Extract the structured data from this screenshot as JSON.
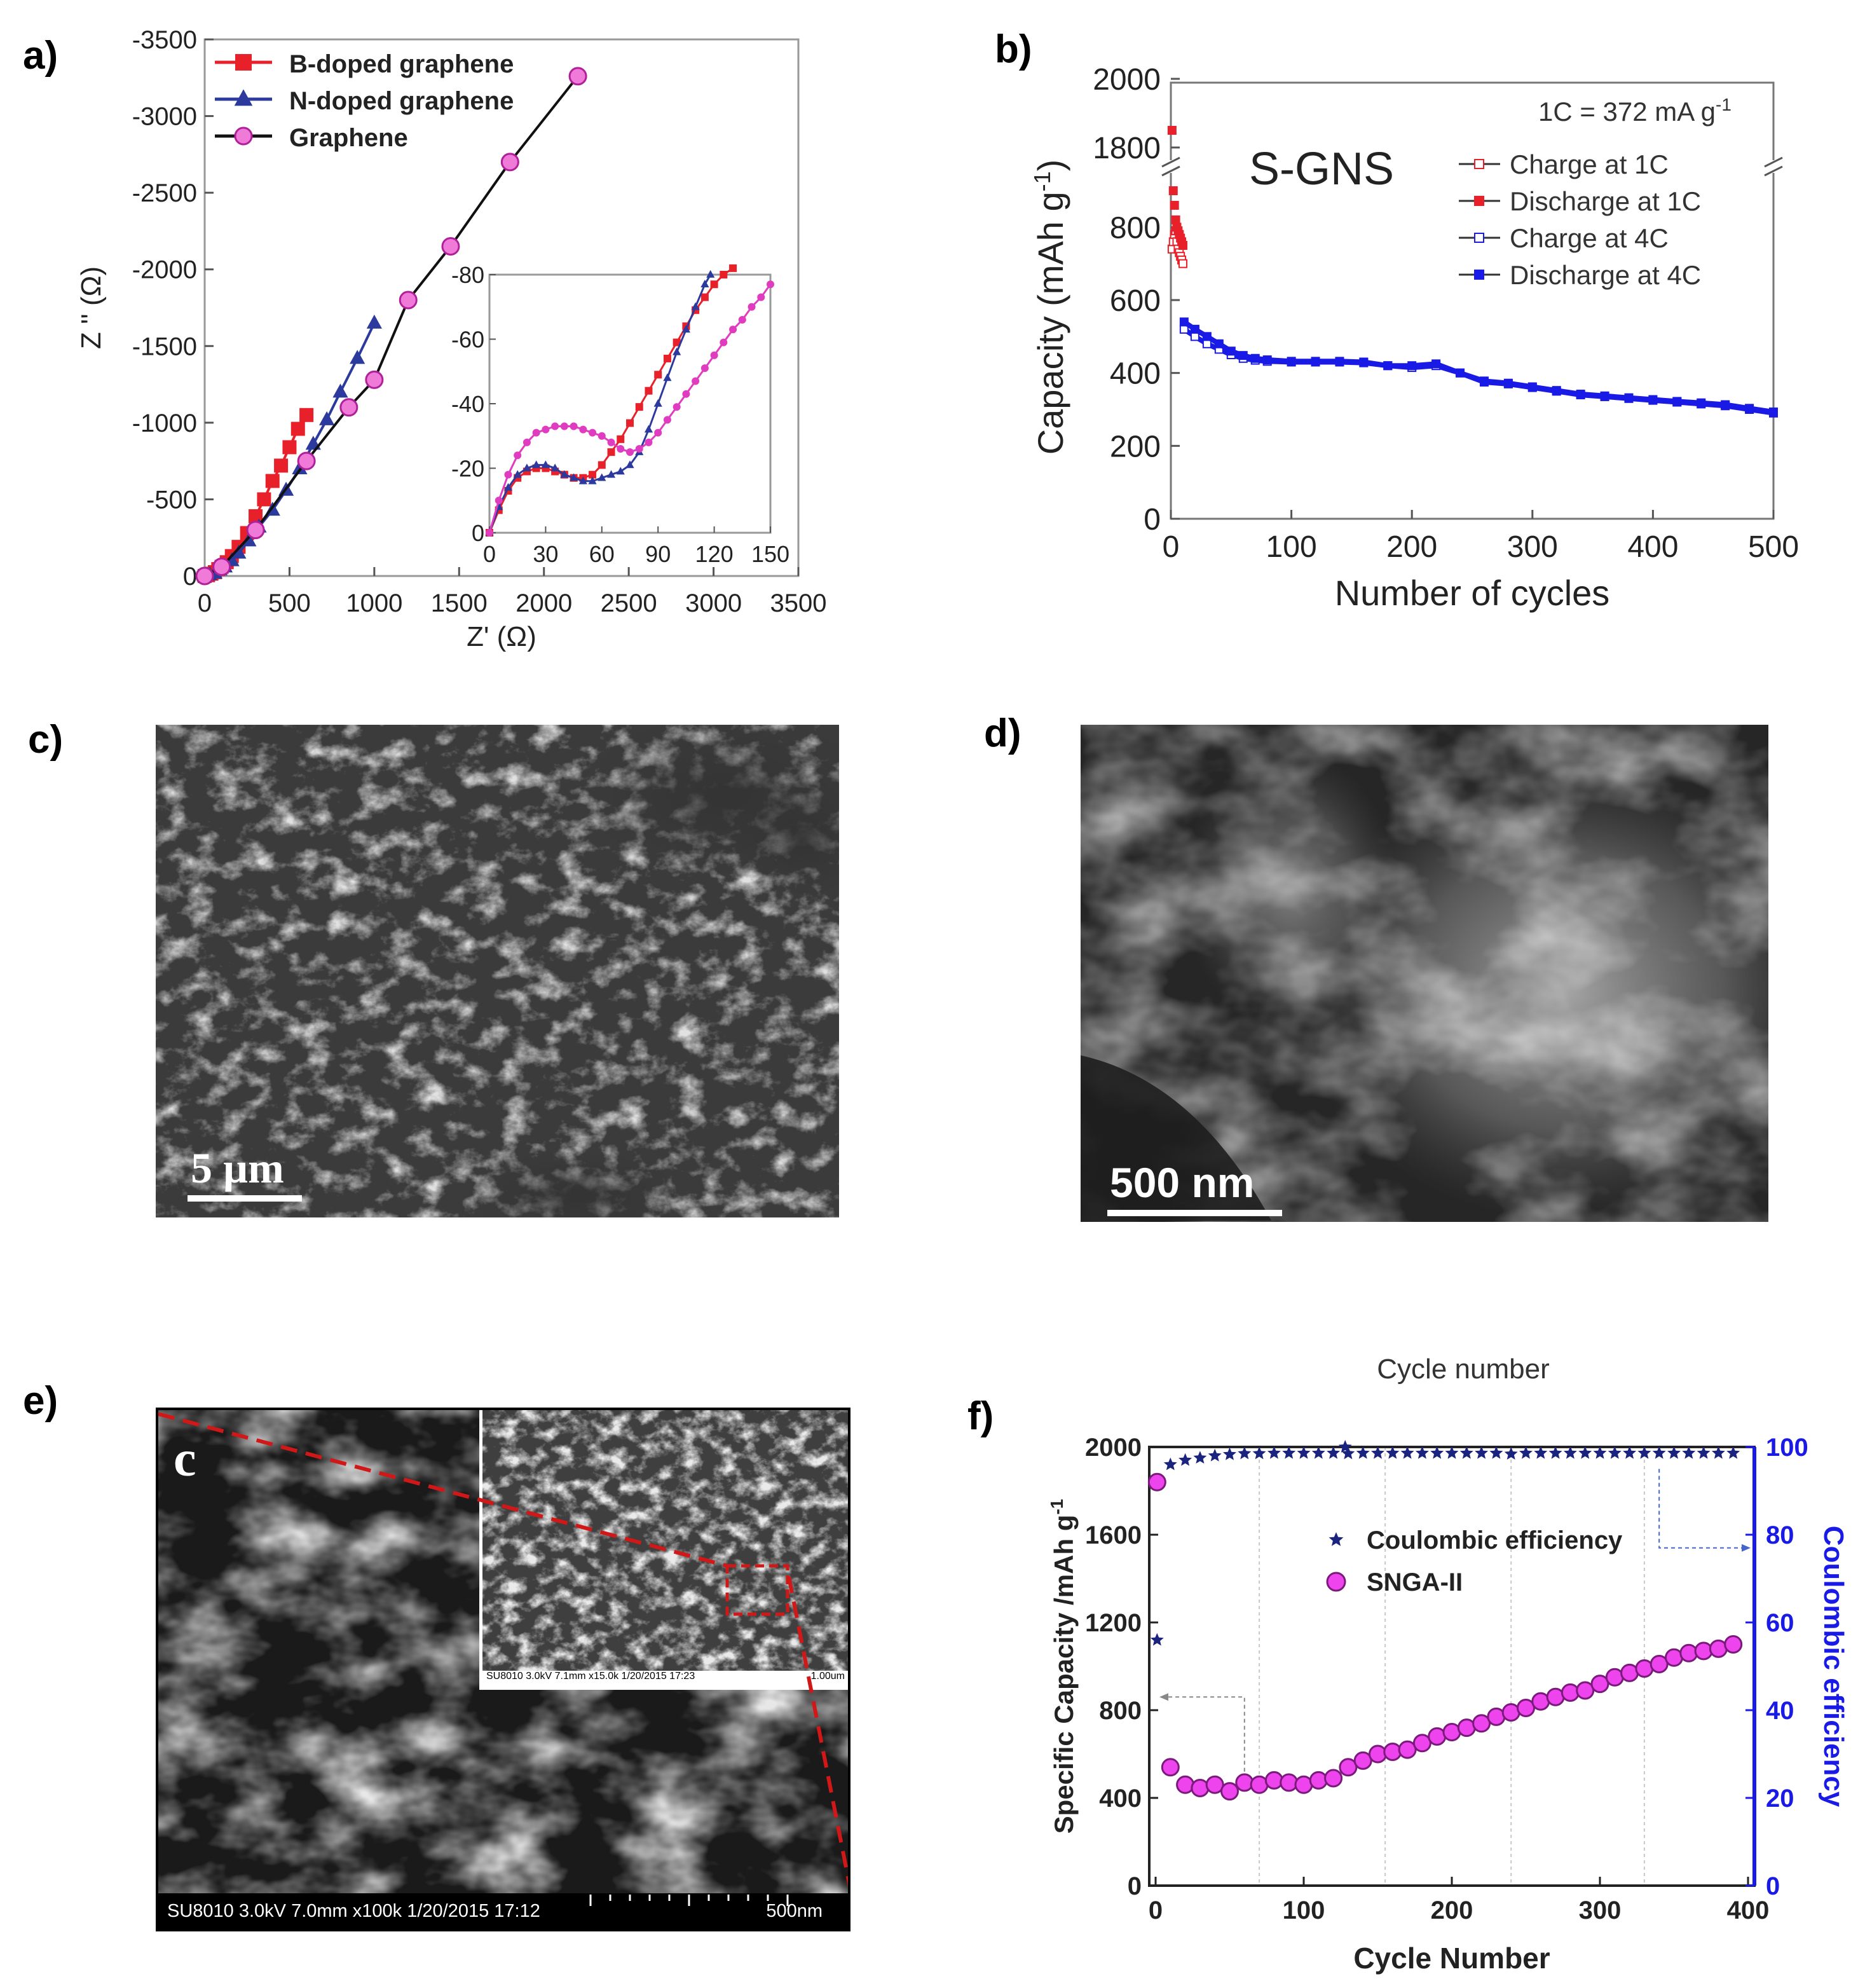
{
  "panels": {
    "a": {
      "label": "a)"
    },
    "b": {
      "label": "b)"
    },
    "c": {
      "label": "c)"
    },
    "d": {
      "label": "d)"
    },
    "e": {
      "label": "e)"
    },
    "f": {
      "label": "f)"
    }
  },
  "images": {
    "c": {
      "scalebar": "5 µm"
    },
    "d": {
      "scalebar": "500 nm"
    },
    "e": {
      "letter": "c",
      "footer_left": "SU8010 3.0kV 7.0mm x100k 1/20/2015 17:12",
      "footer_right": "500nm",
      "inset_footer": "SU8010 3.0kV 7.1mm x15.0k 1/20/2015 17:23",
      "inset_scale": "1.00um"
    }
  },
  "colors": {
    "b_doped": "#e8202a",
    "n_doped": "#2b3a9c",
    "graphene": "#e03cc0",
    "blue": "#1a1ae6",
    "red": "#e8202a",
    "magenta": "#d020d0",
    "navy": "#1a237e"
  },
  "chart_data": [
    {
      "id": "a",
      "type": "line",
      "xlabel": "Z' (Ω)",
      "ylabel": "Z '' (Ω)",
      "xlim": [
        0,
        3500
      ],
      "ylim": [
        0,
        -3500
      ],
      "xticks": [
        "0",
        "500",
        "1000",
        "1500",
        "2000",
        "2500",
        "3000",
        "3500"
      ],
      "yticks": [
        "0",
        "-500",
        "-1000",
        "-1500",
        "-2000",
        "-2500",
        "-3000",
        "-3500"
      ],
      "legend": {
        "position": "top-left"
      },
      "series": [
        {
          "name": "B-doped graphene",
          "x": [
            0,
            20,
            40,
            60,
            80,
            100,
            130,
            160,
            200,
            250,
            300,
            350,
            400,
            450,
            500,
            550,
            600
          ],
          "y": [
            0,
            -5,
            -15,
            -25,
            -45,
            -60,
            -90,
            -130,
            -190,
            -280,
            -390,
            -500,
            -620,
            -720,
            -840,
            -960,
            -1050
          ]
        },
        {
          "name": "N-doped graphene",
          "x": [
            0,
            30,
            60,
            90,
            120,
            160,
            200,
            260,
            320,
            400,
            480,
            560,
            640,
            720,
            800,
            900,
            1000
          ],
          "y": [
            0,
            -8,
            -20,
            -40,
            -60,
            -100,
            -150,
            -230,
            -320,
            -430,
            -560,
            -700,
            -860,
            -1020,
            -1200,
            -1420,
            -1650
          ]
        },
        {
          "name": "Graphene",
          "x": [
            0,
            100,
            300,
            600,
            850,
            1000,
            1200,
            1450,
            1800,
            2200
          ],
          "y": [
            0,
            -60,
            -300,
            -750,
            -1100,
            -1280,
            -1800,
            -2150,
            -2700,
            -3260
          ]
        }
      ],
      "inset": {
        "xlim": [
          0,
          150
        ],
        "ylim": [
          0,
          -80
        ],
        "xticks": [
          "0",
          "30",
          "60",
          "90",
          "120",
          "150"
        ],
        "yticks": [
          "0",
          "-20",
          "-40",
          "-60",
          "-80"
        ],
        "series": [
          {
            "name": "B-doped graphene",
            "x": [
              0,
              5,
              10,
              15,
              20,
              25,
              30,
              35,
              40,
              45,
              50,
              55,
              60,
              65,
              70,
              75,
              80,
              85,
              90,
              95,
              100,
              105,
              110,
              115,
              120,
              125,
              130
            ],
            "y": [
              0,
              -7,
              -13,
              -17,
              -19,
              -20,
              -20,
              -19,
              -18,
              -17,
              -17,
              -18,
              -21,
              -25,
              -29,
              -34,
              -39,
              -44,
              -49,
              -54,
              -59,
              -64,
              -69,
              -73,
              -77,
              -80,
              -82
            ]
          },
          {
            "name": "N-doped graphene",
            "x": [
              0,
              5,
              10,
              15,
              20,
              25,
              30,
              35,
              40,
              45,
              50,
              55,
              60,
              65,
              70,
              75,
              80,
              85,
              90,
              95,
              100,
              105,
              110,
              115,
              118
            ],
            "y": [
              0,
              -8,
              -14,
              -18,
              -20,
              -21,
              -21,
              -20,
              -18,
              -17,
              -16,
              -16,
              -17,
              -18,
              -19,
              -21,
              -25,
              -32,
              -40,
              -48,
              -56,
              -63,
              -70,
              -77,
              -80
            ]
          },
          {
            "name": "Graphene",
            "x": [
              0,
              5,
              10,
              15,
              20,
              25,
              30,
              35,
              40,
              45,
              50,
              55,
              60,
              65,
              70,
              75,
              80,
              85,
              90,
              95,
              100,
              105,
              110,
              115,
              120,
              125,
              130,
              135,
              140,
              145,
              150
            ],
            "y": [
              0,
              -10,
              -18,
              -24,
              -28,
              -31,
              -32,
              -33,
              -33,
              -33,
              -32,
              -31,
              -30,
              -28,
              -26,
              -25,
              -26,
              -28,
              -31,
              -35,
              -39,
              -43,
              -47,
              -51,
              -55,
              -59,
              -63,
              -66,
              -70,
              -73,
              -77
            ]
          }
        ]
      }
    },
    {
      "id": "b",
      "type": "line",
      "title": "S-GNS",
      "annotation": "1C = 372 mA g",
      "annotation_sup": "-1",
      "xlabel": "Number of cycles",
      "ylabel": "Capacity (mAh g",
      "ylabel_sup": "-1",
      "ylabel_end": ")",
      "xlim": [
        0,
        500
      ],
      "xticks": [
        "0",
        "100",
        "200",
        "300",
        "400",
        "500"
      ],
      "yticks_lower": [
        "0",
        "200",
        "400",
        "600",
        "800"
      ],
      "yticks_upper": [
        "1800",
        "2000"
      ],
      "axis_break": [
        900,
        1700
      ],
      "legend": {
        "position": "top-right"
      },
      "series": [
        {
          "name": "Charge at 1C",
          "x": [
            1,
            2,
            3,
            4,
            5,
            6,
            7,
            8,
            9,
            10
          ],
          "y": [
            740,
            760,
            780,
            790,
            760,
            740,
            730,
            720,
            710,
            700
          ]
        },
        {
          "name": "Discharge at 1C",
          "x": [
            1,
            2,
            3,
            4,
            5,
            6,
            7,
            8,
            9,
            10
          ],
          "y": [
            1850,
            900,
            860,
            820,
            800,
            790,
            780,
            770,
            760,
            750
          ]
        },
        {
          "name": "Charge at 4C",
          "x": [
            11,
            20,
            30,
            40,
            50,
            60,
            70,
            80,
            100,
            120,
            140,
            160,
            180,
            200,
            220,
            240,
            260,
            280,
            300,
            320,
            340,
            360,
            380,
            400,
            420,
            440,
            460,
            480,
            500
          ],
          "y": [
            520,
            500,
            480,
            465,
            450,
            440,
            435,
            432,
            430,
            430,
            430,
            428,
            420,
            415,
            420,
            400,
            375,
            370,
            360,
            350,
            340,
            335,
            330,
            325,
            320,
            315,
            310,
            300,
            290
          ]
        },
        {
          "name": "Discharge at 4C",
          "x": [
            11,
            20,
            30,
            40,
            50,
            60,
            70,
            80,
            100,
            120,
            140,
            160,
            180,
            200,
            220,
            240,
            260,
            280,
            300,
            320,
            340,
            360,
            380,
            400,
            420,
            440,
            460,
            480,
            500
          ],
          "y": [
            540,
            520,
            500,
            480,
            460,
            448,
            440,
            436,
            432,
            432,
            432,
            430,
            420,
            420,
            425,
            400,
            378,
            372,
            362,
            352,
            342,
            337,
            332,
            327,
            322,
            318,
            313,
            303,
            293
          ]
        }
      ]
    },
    {
      "id": "f",
      "type": "scatter",
      "title": "Cycle number",
      "xlabel": "Cycle Number",
      "ylabel": "Specific Capacity /mAh g",
      "ylabel_sup": "-1",
      "y2label": "Coulombic efficiency",
      "xlim": [
        0,
        400
      ],
      "ylim": [
        0,
        2000
      ],
      "y2lim": [
        0,
        100
      ],
      "xticks": [
        "0",
        "100",
        "200",
        "300",
        "400"
      ],
      "yticks": [
        "0",
        "400",
        "800",
        "1200",
        "1600",
        "2000"
      ],
      "y2ticks": [
        "0",
        "20",
        "40",
        "60",
        "80",
        "100"
      ],
      "grid": true,
      "legend": {
        "position": "center"
      },
      "series": [
        {
          "name": "Coulombic efficiency",
          "axis": "right",
          "x": [
            1,
            10,
            20,
            30,
            40,
            50,
            60,
            70,
            80,
            90,
            100,
            110,
            120,
            128,
            130,
            140,
            150,
            160,
            170,
            180,
            190,
            200,
            210,
            220,
            230,
            240,
            250,
            260,
            270,
            280,
            290,
            300,
            310,
            320,
            330,
            340,
            350,
            360,
            370,
            380,
            390
          ],
          "y": [
            56,
            96,
            97,
            97.5,
            98,
            98.3,
            98.5,
            98.5,
            98.6,
            98.6,
            98.6,
            98.6,
            98.6,
            100,
            98.5,
            98.6,
            98.6,
            98.6,
            98.6,
            98.6,
            98.6,
            98.6,
            98.6,
            98.6,
            98.6,
            98.4,
            98.6,
            98.6,
            98.6,
            98.6,
            98.6,
            98.6,
            98.6,
            98.6,
            98.6,
            98.6,
            98.6,
            98.6,
            98.6,
            98.6,
            98.6
          ]
        },
        {
          "name": "SNGA-II",
          "axis": "left",
          "x": [
            1,
            10,
            20,
            30,
            40,
            50,
            60,
            70,
            80,
            90,
            100,
            110,
            120,
            130,
            140,
            150,
            160,
            170,
            180,
            190,
            200,
            210,
            220,
            230,
            240,
            250,
            260,
            270,
            280,
            290,
            300,
            310,
            320,
            330,
            340,
            350,
            360,
            370,
            380,
            390
          ],
          "y": [
            1840,
            540,
            460,
            445,
            460,
            430,
            470,
            460,
            480,
            470,
            460,
            480,
            490,
            540,
            570,
            600,
            610,
            620,
            650,
            680,
            700,
            720,
            740,
            770,
            790,
            810,
            840,
            860,
            880,
            890,
            920,
            950,
            970,
            990,
            1010,
            1040,
            1060,
            1070,
            1080,
            1100
          ]
        }
      ]
    }
  ]
}
